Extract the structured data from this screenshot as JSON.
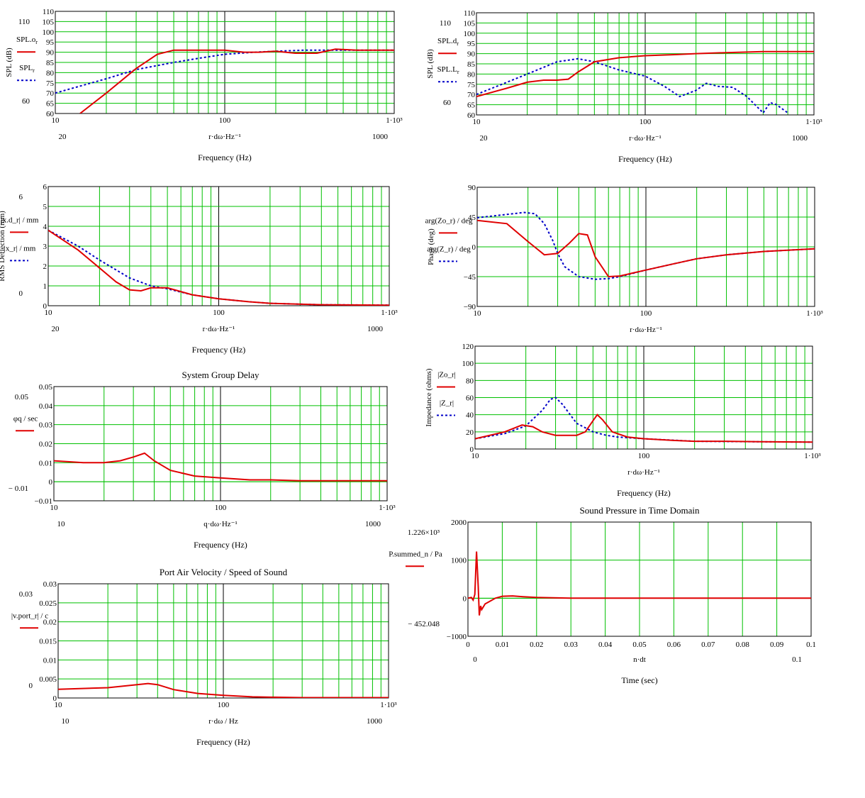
{
  "colors": {
    "grid": "#00c000",
    "decade": "#000000",
    "red": "#e00000",
    "blue": "#0000c8",
    "frame": "#000000"
  },
  "chart_data": [
    {
      "id": "spl-o",
      "type": "line",
      "title": "",
      "xscale": "log",
      "xlim": [
        10,
        1000
      ],
      "ylim": [
        60,
        110
      ],
      "xticks": [
        "10",
        "100",
        "1·10³"
      ],
      "xticks_extra": [
        "20",
        "1000"
      ],
      "yticks": [
        "60",
        "65",
        "70",
        "75",
        "80",
        "85",
        "90",
        "95",
        "100",
        "105",
        "110"
      ],
      "yticks_extra": [
        "110",
        "60"
      ],
      "xlabel": "r·dω·Hz⁻¹",
      "xlabel2": "Frequency (Hz)",
      "ylabel": "SPL (dB)",
      "legend": [
        {
          "text": "SPL.o",
          "sub": "r",
          "style": "solid"
        },
        {
          "text": "SPL",
          "sub": "r",
          "style": "dotted"
        }
      ],
      "series": [
        {
          "style": "solid",
          "x": [
            14,
            20,
            30,
            40,
            50,
            70,
            100,
            130,
            160,
            200,
            260,
            350,
            450,
            600,
            1000
          ],
          "y": [
            60,
            70,
            82,
            89,
            91,
            91,
            91,
            90,
            90,
            90.5,
            89.5,
            89.5,
            91.5,
            91,
            91
          ]
        },
        {
          "style": "dotted",
          "x": [
            10,
            20,
            30,
            50,
            70,
            100,
            150,
            200,
            300,
            400,
            600,
            1000
          ],
          "y": [
            70,
            77,
            81.5,
            85,
            87,
            89,
            90,
            90.5,
            91,
            91,
            91,
            91
          ]
        }
      ]
    },
    {
      "id": "spl-d",
      "type": "line",
      "title": "",
      "xscale": "log",
      "xlim": [
        10,
        1000
      ],
      "ylim": [
        60,
        110
      ],
      "xticks": [
        "10",
        "100",
        "1·10³"
      ],
      "xticks_extra": [
        "20",
        "1000"
      ],
      "yticks": [
        "60",
        "65",
        "70",
        "75",
        "80",
        "85",
        "90",
        "95",
        "100",
        "105",
        "110"
      ],
      "yticks_extra": [
        "110",
        "60"
      ],
      "xlabel": "r·dω·Hz⁻¹",
      "xlabel2": "Frequency (Hz)",
      "ylabel": "SPL (dB)",
      "legend": [
        {
          "text": "SPL.d",
          "sub": "r",
          "style": "solid"
        },
        {
          "text": "SPL.L",
          "sub": "r",
          "style": "dotted"
        }
      ],
      "series": [
        {
          "style": "solid",
          "x": [
            10,
            15,
            20,
            25,
            30,
            35,
            40,
            50,
            70,
            100,
            150,
            200,
            300,
            500,
            1000
          ],
          "y": [
            69,
            73,
            76,
            77,
            77,
            77.5,
            81,
            86,
            88,
            89,
            89.5,
            90,
            90.5,
            91,
            91
          ]
        },
        {
          "style": "dotted",
          "x": [
            10,
            20,
            30,
            40,
            50,
            70,
            100,
            130,
            160,
            200,
            230,
            270,
            330,
            400,
            500,
            550,
            600,
            700
          ],
          "y": [
            70,
            80,
            86,
            87.5,
            86,
            82,
            79,
            74,
            69,
            72,
            75.5,
            74,
            73.5,
            69,
            61,
            66,
            65,
            61
          ]
        }
      ]
    },
    {
      "id": "deflection",
      "type": "line",
      "title": "",
      "xscale": "log",
      "xlim": [
        10,
        1000
      ],
      "ylim": [
        0,
        6
      ],
      "xticks": [
        "10",
        "100",
        "1·10³"
      ],
      "xticks_extra": [
        "20",
        "1000"
      ],
      "yticks": [
        "0",
        "1",
        "2",
        "3",
        "4",
        "5",
        "6"
      ],
      "yticks_extra": [
        "6",
        "0"
      ],
      "xlabel": "r·dω·Hz⁻¹",
      "xlabel2": "Frequency (Hz)",
      "ylabel": "RMS Deflection (mm)",
      "legend": [
        {
          "text": "|x.d_r| / mm",
          "style": "solid"
        },
        {
          "text": "|x_r| / mm",
          "style": "dotted"
        }
      ],
      "series": [
        {
          "style": "solid",
          "x": [
            10,
            15,
            20,
            25,
            30,
            35,
            40,
            50,
            70,
            100,
            150,
            200,
            400,
            1000
          ],
          "y": [
            3.8,
            2.8,
            1.9,
            1.2,
            0.8,
            0.75,
            0.9,
            0.9,
            0.55,
            0.35,
            0.2,
            0.12,
            0.05,
            0.03
          ]
        },
        {
          "style": "dotted",
          "x": [
            10,
            15,
            20,
            30,
            40,
            50,
            70,
            100,
            150,
            200,
            400,
            1000
          ],
          "y": [
            3.8,
            3.0,
            2.3,
            1.4,
            1.0,
            0.85,
            0.55,
            0.35,
            0.2,
            0.12,
            0.05,
            0.03
          ]
        }
      ]
    },
    {
      "id": "phase",
      "type": "line",
      "title": "",
      "xscale": "log",
      "xlim": [
        10,
        1000
      ],
      "ylim": [
        -90,
        90
      ],
      "xticks": [
        "10",
        "100",
        "1·10³"
      ],
      "xticks_extra": [],
      "yticks": [
        "−90",
        "−45",
        "0",
        "45",
        "90"
      ],
      "yticks_extra": [],
      "xlabel": "r·dω·Hz⁻¹",
      "xlabel2": "",
      "ylabel": "Phase (deg)",
      "legend": [
        {
          "text": "arg(Zo_r) / deg",
          "style": "solid"
        },
        {
          "text": "arg(Z_r) / deg",
          "style": "dotted"
        }
      ],
      "series": [
        {
          "style": "solid",
          "x": [
            10,
            15,
            20,
            25,
            30,
            35,
            40,
            45,
            50,
            60,
            70,
            100,
            150,
            200,
            300,
            500,
            1000
          ],
          "y": [
            40,
            35,
            8,
            -12,
            -10,
            5,
            20,
            18,
            -15,
            -45,
            -44,
            -35,
            -25,
            -18,
            -12,
            -7,
            -3
          ]
        },
        {
          "style": "dotted",
          "x": [
            10,
            15,
            19,
            22,
            25,
            28,
            30,
            33,
            40,
            50,
            60,
            70,
            100,
            150,
            200,
            300,
            500,
            1000
          ],
          "y": [
            44,
            49,
            52,
            50,
            35,
            10,
            -10,
            -30,
            -45,
            -49,
            -48,
            -45,
            -35,
            -25,
            -18,
            -12,
            -7,
            -3
          ]
        }
      ]
    },
    {
      "id": "impedance",
      "type": "line",
      "title": "",
      "xscale": "log",
      "xlim": [
        10,
        1000
      ],
      "ylim": [
        0,
        120
      ],
      "xticks": [
        "10",
        "100",
        "1·10³"
      ],
      "xticks_extra": [],
      "yticks": [
        "0",
        "20",
        "40",
        "60",
        "80",
        "100",
        "120"
      ],
      "yticks_extra": [],
      "xlabel": "r·dω·Hz⁻¹",
      "xlabel2": "Frequency (Hz)",
      "ylabel": "Impedance (ohms)",
      "legend": [
        {
          "text": "|Zo_r|",
          "style": "solid"
        },
        {
          "text": "|Z_r|",
          "style": "dotted"
        }
      ],
      "series": [
        {
          "style": "solid",
          "x": [
            10,
            15,
            19,
            22,
            25,
            30,
            35,
            40,
            45,
            50,
            53,
            57,
            65,
            80,
            100,
            150,
            200,
            300,
            500,
            1000
          ],
          "y": [
            12,
            20,
            28,
            26,
            20,
            16,
            16,
            16,
            20,
            33,
            40,
            34,
            20,
            14,
            12,
            10,
            9,
            9,
            8.5,
            8
          ]
        },
        {
          "style": "dotted",
          "x": [
            10,
            15,
            20,
            25,
            28,
            30,
            33,
            40,
            50,
            60,
            70,
            100,
            200,
            1000
          ],
          "y": [
            12,
            18,
            27,
            45,
            58,
            60,
            52,
            30,
            20,
            16,
            14,
            12,
            9,
            8
          ]
        }
      ]
    },
    {
      "id": "group-delay",
      "type": "line",
      "title": "System Group Delay",
      "xscale": "log",
      "xlim": [
        10,
        1000
      ],
      "ylim": [
        -0.01,
        0.05
      ],
      "xticks": [
        "10",
        "100",
        "1·10³"
      ],
      "xticks_extra": [
        "10",
        "1000"
      ],
      "yticks": [
        "−0.01",
        "0",
        "0.01",
        "0.02",
        "0.03",
        "0.04",
        "0.05"
      ],
      "yticks_extra": [
        "0.05",
        "− 0.01"
      ],
      "xlabel": "q·dω·Hz⁻¹",
      "xlabel2": "Frequency (Hz)",
      "ylabel": "",
      "legend": [
        {
          "text": "φq / sec",
          "style": "solid"
        }
      ],
      "series": [
        {
          "style": "solid",
          "x": [
            10,
            15,
            20,
            25,
            30,
            35,
            40,
            50,
            70,
            100,
            150,
            200,
            300,
            500,
            1000
          ],
          "y": [
            0.011,
            0.01,
            0.01,
            0.011,
            0.013,
            0.015,
            0.011,
            0.006,
            0.003,
            0.002,
            0.001,
            0.001,
            0.0005,
            0.0005,
            0.0005
          ]
        }
      ]
    },
    {
      "id": "time",
      "type": "line",
      "title": "Sound Pressure in Time Domain",
      "xscale": "linear",
      "xlim": [
        0,
        0.1
      ],
      "ylim": [
        -1000,
        2000
      ],
      "xticks": [
        "0",
        "0.01",
        "0.02",
        "0.03",
        "0.04",
        "0.05",
        "0.06",
        "0.07",
        "0.08",
        "0.09",
        "0.1"
      ],
      "xticks_extra": [
        "0",
        "0.1"
      ],
      "yticks": [
        "−1000",
        "0",
        "1000",
        "2000"
      ],
      "yticks_extra": [
        "1.226×10³",
        "− 452.048"
      ],
      "xlabel": "n·dt",
      "xlabel2": "Time (sec)",
      "ylabel": "",
      "legend": [
        {
          "text": "P.summed_n / Pa",
          "style": "solid"
        }
      ],
      "series": [
        {
          "style": "solid",
          "x": [
            0,
            0.001,
            0.0015,
            0.002,
            0.0025,
            0.003,
            0.0033,
            0.0037,
            0.004,
            0.005,
            0.006,
            0.008,
            0.01,
            0.013,
            0.016,
            0.02,
            0.03,
            0.05,
            0.1
          ],
          "y": [
            0,
            20,
            -50,
            100,
            1226,
            300,
            -452,
            -200,
            -300,
            -150,
            -100,
            0,
            50,
            60,
            40,
            20,
            0,
            0,
            0
          ]
        }
      ]
    },
    {
      "id": "port-velocity",
      "type": "line",
      "title": "Port Air Velocity / Speed of Sound",
      "xscale": "log",
      "xlim": [
        10,
        1000
      ],
      "ylim": [
        0,
        0.03
      ],
      "xticks": [
        "10",
        "100",
        "1·10³"
      ],
      "xticks_extra": [
        "10",
        "1000"
      ],
      "yticks": [
        "0",
        "0.005",
        "0.01",
        "0.015",
        "0.02",
        "0.025",
        "0.03"
      ],
      "yticks_extra": [
        "0.03",
        "0"
      ],
      "xlabel": "r·dω / Hz",
      "xlabel2": "Frequency (Hz)",
      "ylabel": "",
      "legend": [
        {
          "text": "|v.port_r| / c",
          "style": "solid"
        }
      ],
      "series": [
        {
          "style": "solid",
          "x": [
            10,
            20,
            30,
            35,
            40,
            50,
            70,
            100,
            150,
            200,
            300,
            1000
          ],
          "y": [
            0.0023,
            0.0027,
            0.0035,
            0.0038,
            0.0035,
            0.0022,
            0.0012,
            0.0007,
            0.0003,
            0.0002,
            0.0001,
            0.0001
          ]
        }
      ]
    }
  ]
}
